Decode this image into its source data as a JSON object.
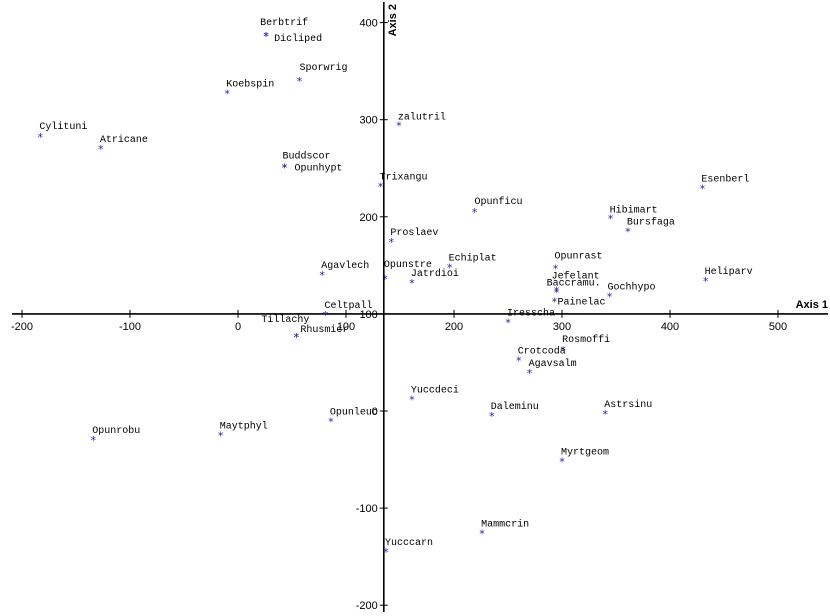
{
  "chart_data": {
    "type": "scatter",
    "xlabel": "Axis 1",
    "ylabel": "Axis 2",
    "xlim": [
      -205,
      545
    ],
    "ylim": [
      -205,
      415
    ],
    "x_ticks": [
      -200,
      -100,
      0,
      100,
      200,
      300,
      400,
      500
    ],
    "y_ticks": [
      -200,
      -100,
      0,
      100,
      200,
      300,
      400
    ],
    "grid": false,
    "marker_color": "#1f1fa8",
    "points": [
      {
        "name": "Berbtrif",
        "x": 26,
        "y": 386
      },
      {
        "name": "Dicliped",
        "x": 26,
        "y": 386
      },
      {
        "name": "Sporwrig",
        "x": 57,
        "y": 340
      },
      {
        "name": "Koebspin",
        "x": -10,
        "y": 327
      },
      {
        "name": "Cylituni",
        "x": -183,
        "y": 282
      },
      {
        "name": "Atricane",
        "x": -127,
        "y": 270
      },
      {
        "name": "zalutril",
        "x": 149,
        "y": 294
      },
      {
        "name": "Buddscor",
        "x": 43,
        "y": 251
      },
      {
        "name": "Opunhypt",
        "x": 43,
        "y": 251
      },
      {
        "name": "Trixangu",
        "x": 132,
        "y": 231
      },
      {
        "name": "Opunficu",
        "x": 219,
        "y": 205
      },
      {
        "name": "Esenberl",
        "x": 430,
        "y": 229
      },
      {
        "name": "Hibimart",
        "x": 345,
        "y": 198
      },
      {
        "name": "Bursfaga",
        "x": 361,
        "y": 185
      },
      {
        "name": "Proslaev",
        "x": 142,
        "y": 174
      },
      {
        "name": "Echiplat",
        "x": 196,
        "y": 148
      },
      {
        "name": "Agavlech",
        "x": 78,
        "y": 140
      },
      {
        "name": "Opunstre",
        "x": 136,
        "y": 136
      },
      {
        "name": "Jatrdioi",
        "x": 161,
        "y": 132
      },
      {
        "name": "Opunrast",
        "x": 294,
        "y": 147
      },
      {
        "name": "Jefelant",
        "x": 295,
        "y": 124
      },
      {
        "name": "Baccramu",
        "x": 295,
        "y": 122
      },
      {
        "name": "Painelac",
        "x": 293,
        "y": 113
      },
      {
        "name": "Gochhypo",
        "x": 344,
        "y": 118
      },
      {
        "name": "Heliparv",
        "x": 433,
        "y": 134
      },
      {
        "name": "Celtpall",
        "x": 81,
        "y": 99
      },
      {
        "name": "Iresscha",
        "x": 250,
        "y": 91
      },
      {
        "name": "Tillachy",
        "x": 54,
        "y": 76
      },
      {
        "name": "Rhusmicr",
        "x": 54,
        "y": 76
      },
      {
        "name": "Rosmoffi",
        "x": 301,
        "y": 63
      },
      {
        "name": "Crotcoda",
        "x": 260,
        "y": 52
      },
      {
        "name": "Agavsalm",
        "x": 270,
        "y": 39
      },
      {
        "name": "Yuccdeci",
        "x": 161,
        "y": 12
      },
      {
        "name": "Opunleuc",
        "x": 86,
        "y": -11
      },
      {
        "name": "Daleminu",
        "x": 235,
        "y": -5
      },
      {
        "name": "Astrsinu",
        "x": 340,
        "y": -3
      },
      {
        "name": "Maytphyl",
        "x": -16,
        "y": -25
      },
      {
        "name": "Opunrobu",
        "x": -134,
        "y": -30
      },
      {
        "name": "Myrtgeom",
        "x": 300,
        "y": -52
      },
      {
        "name": "Mammcrin",
        "x": 226,
        "y": -126
      },
      {
        "name": "Yucccarn",
        "x": 137,
        "y": -145
      }
    ],
    "label_text": {
      "Berbtrif": "Berbtrif",
      "Dicliped": "Dicliped",
      "Sporwrig": "Sporwrig",
      "Koebspin": "Koebspin",
      "Cylituni": "Cylituni",
      "Atricane": "Atricane",
      "zalutril": "zalutril",
      "Buddscor": "Buddscor",
      "Opunhypt": "Opunhypt",
      "Trixangu": "Trixangu",
      "Opunficu": "Opunficu",
      "Esenberl": "Esenberl",
      "Hibimart": "Hibimart",
      "Bursfaga": "Bursfaga",
      "Proslaev": "Proslaev",
      "Echiplat": "Echiplat",
      "Agavlech": "Agavlech",
      "Opunstre": "Opunstre",
      "Jatrdioi": "Jatrdioi",
      "Opunrast": "Opunrast",
      "Jefelant": "Jefelant",
      "Baccramu": "Baccramu.",
      "Painelac": "Painelac",
      "Gochhypo": "Gochhypo",
      "Heliparv": "Heliparv",
      "Celtpall": "Celtpall",
      "Iresscha": "Iresscha",
      "Tillachy": "Tillachy",
      "Rhusmicr": "Rhusmicr",
      "Rosmoffi": "Rosmoffi",
      "Crotcoda": "Crotcoda",
      "Agavsalm": "Agavsalm",
      "Yuccdeci": "Yuccdeci",
      "Opunleuc": "Opunleuc",
      "Daleminu": "Daleminu",
      "Astrsinu": "Astrsinu",
      "Maytphyl": "Maytphyl",
      "Opunrobu": "Opunrobu",
      "Myrtgeom": "Myrtgeom",
      "Mammcrin": "Mammcrin",
      "Yucccarn": "Yucccarn"
    },
    "marker_symbol": "*"
  }
}
